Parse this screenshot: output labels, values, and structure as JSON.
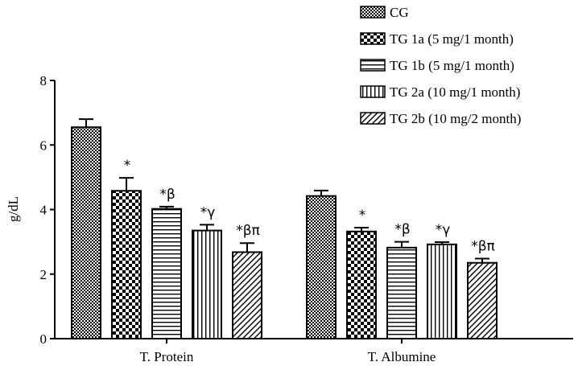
{
  "chart_data": {
    "type": "bar",
    "ylabel": "g/dL",
    "xlabel": "",
    "ylim": [
      0,
      8
    ],
    "yticks": [
      0,
      2,
      4,
      6,
      8
    ],
    "grid": false,
    "legend_position": "top-right",
    "categories": [
      "T. Protein",
      "T. Albumine"
    ],
    "series": [
      {
        "name": "CG",
        "pattern": "fine-check",
        "values": [
          6.55,
          4.42
        ],
        "errors": [
          0.25,
          0.17
        ],
        "annotations": [
          "",
          ""
        ]
      },
      {
        "name": "TG 1a (5 mg/1 month)",
        "pattern": "checker",
        "values": [
          4.58,
          3.32
        ],
        "errors": [
          0.4,
          0.12
        ],
        "annotations": [
          "*",
          "*"
        ]
      },
      {
        "name": "TG 1b (5 mg/1 month)",
        "pattern": "horizontal-lines",
        "values": [
          4.02,
          2.82
        ],
        "errors": [
          0.07,
          0.18
        ],
        "annotations": [
          "*β",
          "*β"
        ]
      },
      {
        "name": "TG 2a (10 mg/1 month)",
        "pattern": "vertical-lines",
        "values": [
          3.35,
          2.92
        ],
        "errors": [
          0.18,
          0.07
        ],
        "annotations": [
          "*γ",
          "*γ"
        ]
      },
      {
        "name": "TG 2b (10 mg/2 month)",
        "pattern": "diagonal-lines",
        "values": [
          2.68,
          2.35
        ],
        "errors": [
          0.28,
          0.13
        ],
        "annotations": [
          "*βπ",
          "*βπ"
        ]
      }
    ]
  }
}
